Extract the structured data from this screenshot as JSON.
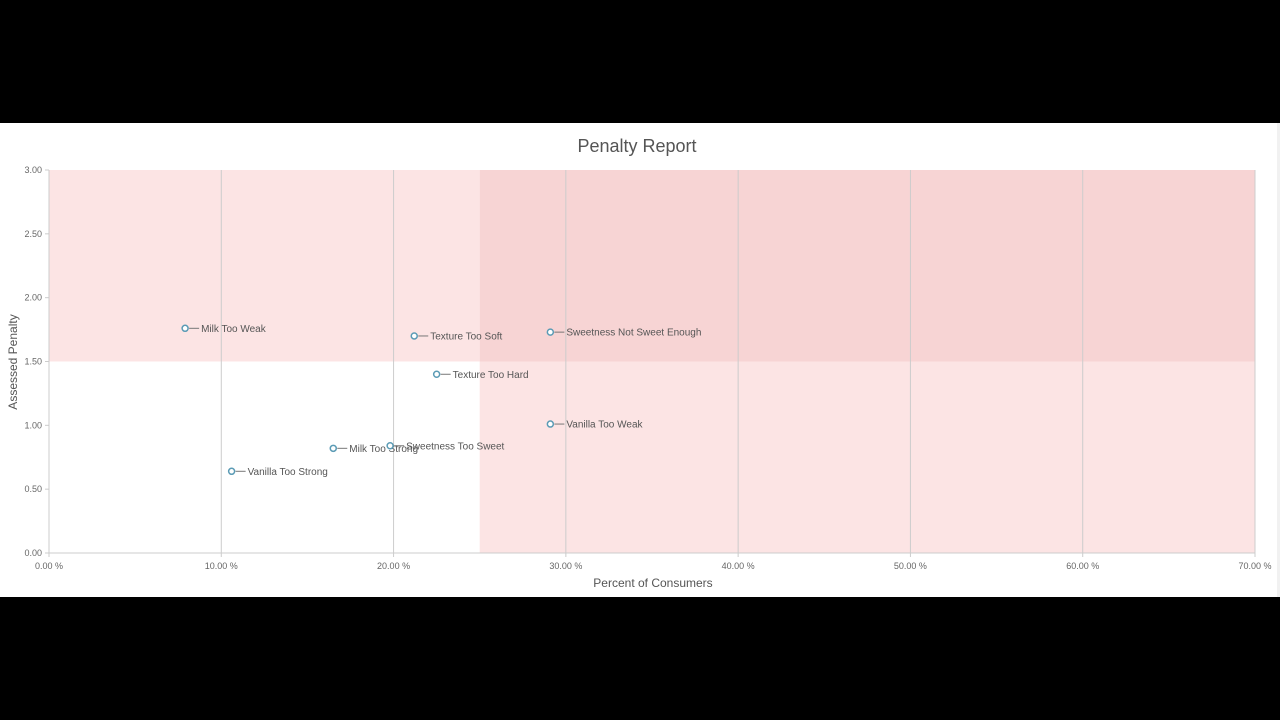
{
  "chart_data": {
    "type": "scatter",
    "title": "Penalty Report",
    "xlabel": "Percent of Consumers",
    "ylabel": "Assessed Penalty",
    "xlim": [
      0,
      70
    ],
    "ylim": [
      0,
      3
    ],
    "x_ticks": [
      0,
      10,
      20,
      30,
      40,
      50,
      60,
      70
    ],
    "x_tick_labels": [
      "0.00 %",
      "10.00 %",
      "20.00 %",
      "30.00 %",
      "40.00 %",
      "50.00 %",
      "60.00 %",
      "70.00 %"
    ],
    "y_ticks": [
      0,
      0.5,
      1,
      1.5,
      2,
      2.5,
      3
    ],
    "y_tick_labels": [
      "0.00",
      "0.50",
      "1.00",
      "1.50",
      "2.00",
      "2.50",
      "3.00"
    ],
    "vertical_gridlines": true,
    "horizontal_gridlines": false,
    "zones": [
      {
        "x": [
          0,
          25
        ],
        "y": [
          1.5,
          3
        ],
        "color": "#fce4e4"
      },
      {
        "x": [
          25,
          70
        ],
        "y": [
          1.5,
          3
        ],
        "color": "#f7d4d4"
      },
      {
        "x": [
          25,
          70
        ],
        "y": [
          0,
          1.5
        ],
        "color": "#fce4e4"
      }
    ],
    "marker_color": "#5b9bb5",
    "points": [
      {
        "label": "Milk Too Weak",
        "x": 7.9,
        "y": 1.76
      },
      {
        "label": "Texture Too Soft",
        "x": 21.2,
        "y": 1.7
      },
      {
        "label": "Sweetness Not Sweet Enough",
        "x": 29.1,
        "y": 1.73
      },
      {
        "label": "Texture Too Hard",
        "x": 22.5,
        "y": 1.4
      },
      {
        "label": "Vanilla Too Weak",
        "x": 29.1,
        "y": 1.01
      },
      {
        "label": "Milk Too Strong",
        "x": 16.5,
        "y": 0.82
      },
      {
        "label": "Sweetness Too Sweet",
        "x": 19.8,
        "y": 0.84
      },
      {
        "label": "Vanilla Too Strong",
        "x": 10.6,
        "y": 0.64
      }
    ]
  }
}
